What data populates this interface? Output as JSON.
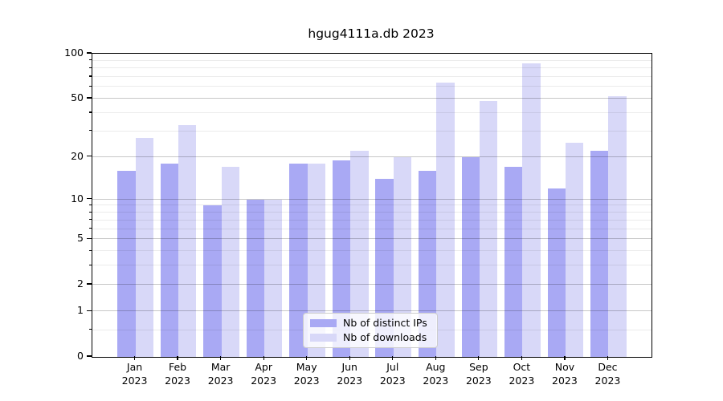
{
  "chart_data": {
    "type": "bar",
    "title": "hgug4111a.db 2023",
    "year_label": "2023",
    "categories": [
      "Jan",
      "Feb",
      "Mar",
      "Apr",
      "May",
      "Jun",
      "Jul",
      "Aug",
      "Sep",
      "Oct",
      "Nov",
      "Dec"
    ],
    "series": [
      {
        "name": "Nb of distinct IPs",
        "key": "distinct-ips",
        "color": "#a9a9f4",
        "values": [
          16,
          18,
          9,
          10,
          18,
          19,
          14,
          16,
          20,
          17,
          12,
          22
        ]
      },
      {
        "name": "Nb of downloads",
        "key": "downloads",
        "color": "#d8d8f8",
        "values": [
          27,
          33,
          17,
          10,
          18,
          22,
          20,
          64,
          48,
          86,
          25,
          52
        ]
      }
    ],
    "y_axis": {
      "scale": "log1p",
      "range": [
        0,
        100
      ],
      "ticks": [
        0,
        1,
        2,
        5,
        10,
        20,
        50,
        100
      ],
      "minor_ticks": [
        0.5,
        3,
        4,
        6,
        7,
        8,
        9,
        30,
        40,
        60,
        70,
        80,
        90
      ]
    },
    "x_axis": {
      "tick_line2": "2023"
    },
    "legend": {
      "position": "bottom-center"
    },
    "grid": true,
    "colors": {
      "spine": "#000000",
      "major_grid": "#c9c9c9",
      "minor_grid": "#ebebeb"
    }
  }
}
